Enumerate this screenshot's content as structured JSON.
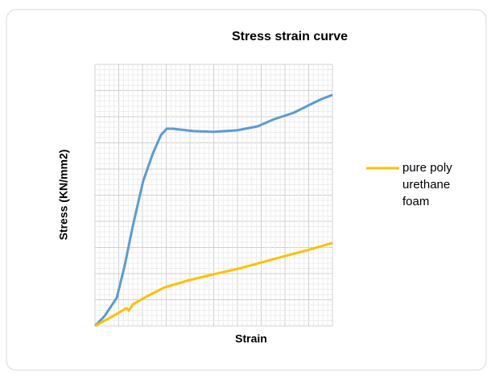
{
  "chart_data": {
    "type": "line",
    "title": "Stress strain curve",
    "x_label": "Strain",
    "y_label": "Stress (KN/mm2)",
    "xlim": [
      0,
      10
    ],
    "ylim": [
      0,
      10
    ],
    "grid": true,
    "legend": "right",
    "series": [
      {
        "color": "#5b9bd5",
        "x": [
          0,
          0.4,
          0.92,
          1.25,
          1.6,
          2.03,
          2.44,
          2.78,
          3.02,
          3.29,
          4.14,
          4.98,
          6,
          6.85,
          7.53,
          8.37,
          9.05,
          9.56,
          10
        ],
        "values": [
          0,
          0.37,
          1.08,
          2.3,
          3.85,
          5.54,
          6.6,
          7.3,
          7.54,
          7.54,
          7.45,
          7.42,
          7.48,
          7.63,
          7.9,
          8.15,
          8.46,
          8.68,
          8.83
        ]
      },
      {
        "name": "pure polyurethane foam",
        "color": "#ffc000",
        "x": [
          0,
          0.75,
          1.32,
          1.42,
          1.6,
          2.27,
          2.95,
          3.97,
          4.98,
          6,
          7.02,
          8.03,
          9.05,
          10
        ],
        "values": [
          0,
          0.37,
          0.68,
          0.58,
          0.83,
          1.17,
          1.48,
          1.75,
          1.97,
          2.18,
          2.43,
          2.68,
          2.92,
          3.17
        ]
      }
    ]
  }
}
